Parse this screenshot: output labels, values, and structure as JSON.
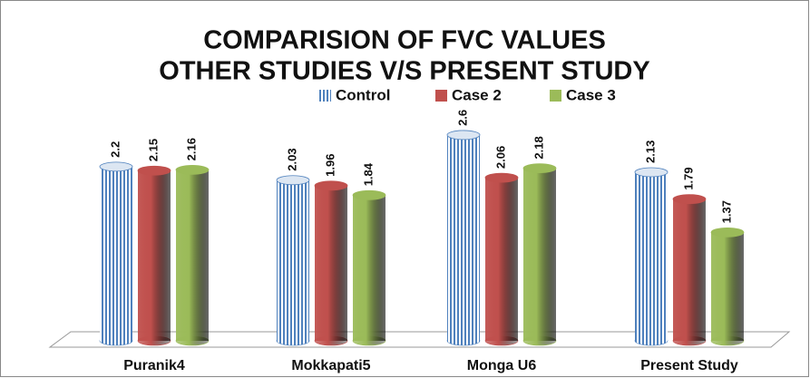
{
  "chart_data": {
    "type": "bar",
    "title": [
      "COMPARISION OF FVC VALUES",
      "OTHER STUDIES V/S PRESENT STUDY"
    ],
    "categories": [
      "Puranik4",
      "Mokkapati5",
      "Monga U6",
      "Present Study"
    ],
    "series": [
      {
        "name": "Control",
        "color": "#4f81bd",
        "values": [
          2.2,
          2.03,
          2.6,
          2.13
        ]
      },
      {
        "name": "Case 2",
        "color": "#c0504d",
        "values": [
          2.15,
          1.96,
          2.06,
          1.79
        ]
      },
      {
        "name": "Case 3",
        "color": "#9bbb59",
        "values": [
          2.16,
          1.84,
          2.18,
          1.37
        ]
      }
    ],
    "ylim": [
      0,
      3
    ]
  }
}
